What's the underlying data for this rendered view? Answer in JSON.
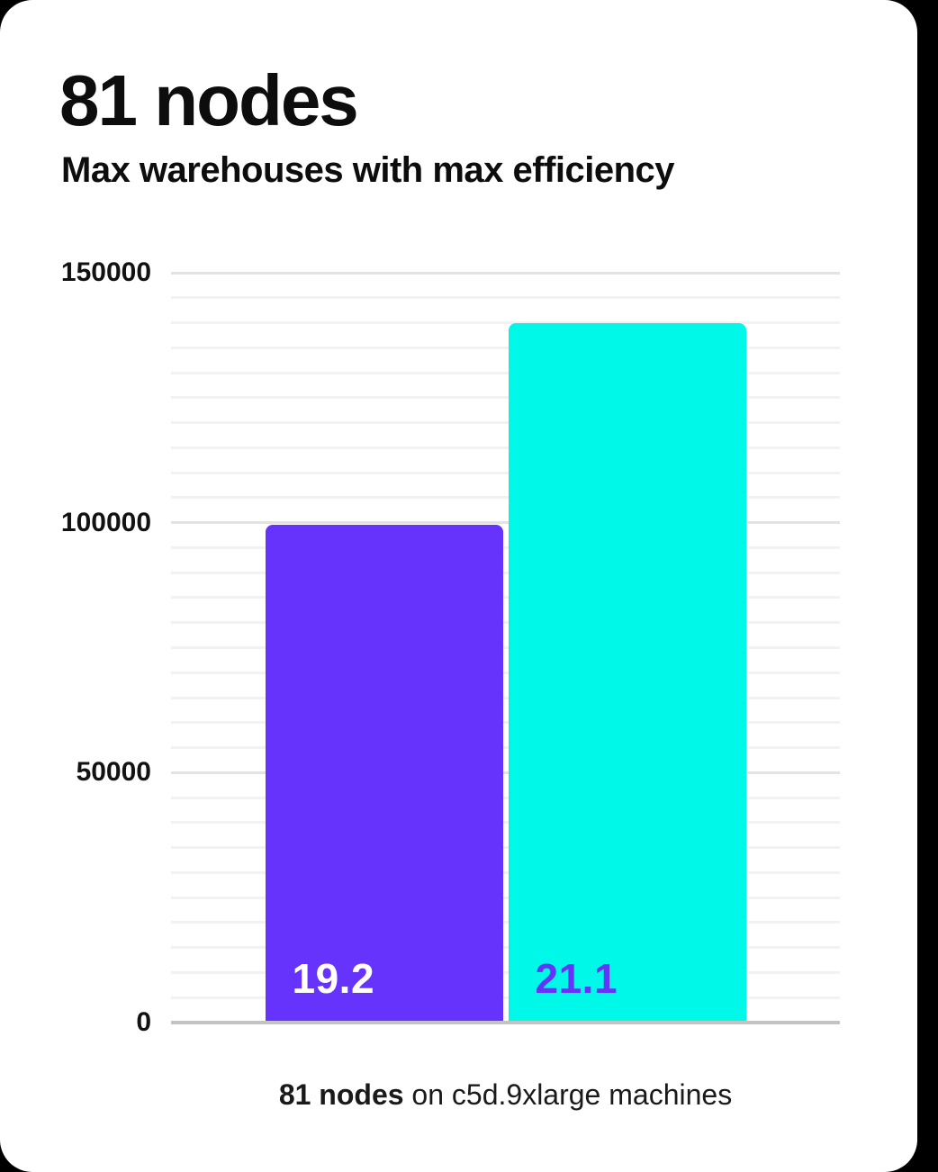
{
  "page": {
    "background": "#000000",
    "card_background": "#ffffff"
  },
  "header": {
    "title": "81 nodes",
    "subtitle": "Max warehouses with max efficiency"
  },
  "caption": {
    "bold": "81 nodes",
    "rest": " on c5d.9xlarge machines"
  },
  "chart_data": {
    "type": "bar",
    "title": "81 nodes",
    "subtitle": "Max warehouses with max efficiency",
    "caption": "81 nodes on c5d.9xlarge machines",
    "bars": [
      {
        "label": "19.2",
        "value": 99500,
        "color": "#6533fb",
        "label_color": "#ffffff"
      },
      {
        "label": "21.1",
        "value": 140000,
        "color": "#00f8e8",
        "label_color": "#6533fb"
      }
    ],
    "ylabel": "",
    "xlabel": "",
    "ylim": [
      0,
      150000
    ],
    "ytick_labels": [
      "0",
      "50000",
      "100000",
      "150000"
    ],
    "ytick_values": [
      0,
      50000,
      100000,
      150000
    ],
    "minor_grid_step": 5000,
    "major_grid_step": 50000,
    "grid": "horizontal-only",
    "legend": "none",
    "grid_color_minor": "#f2f2f2",
    "grid_color_major": "#e3e3e3",
    "axis_line_color": "#c3c3c3"
  }
}
